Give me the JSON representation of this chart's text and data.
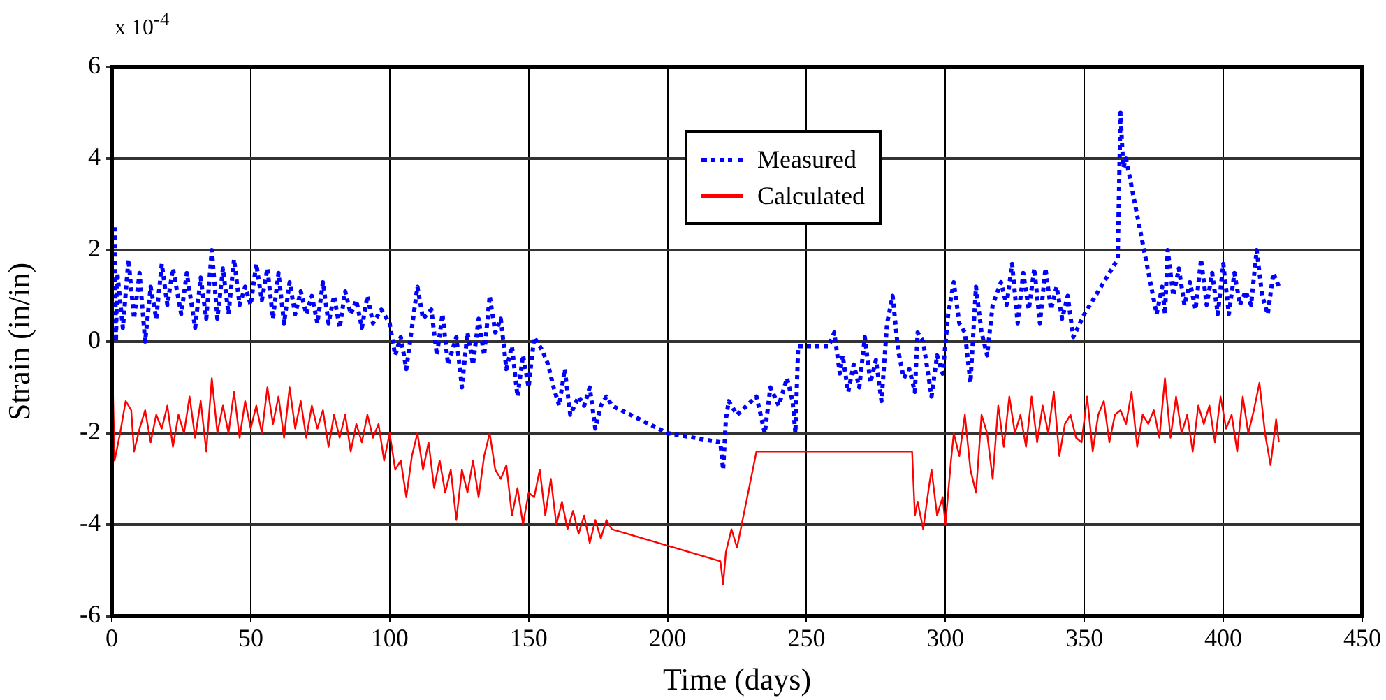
{
  "chart_data": {
    "type": "line",
    "xlabel": "Time (days)",
    "ylabel": "Strain (in/in)",
    "annotations": [
      "x 10$^{-4}$"
    ],
    "xlim": [
      0,
      450
    ],
    "xticks": [
      0,
      50,
      100,
      150,
      200,
      250,
      300,
      350,
      400,
      450
    ],
    "ylim": [
      -6,
      6
    ],
    "yticks": [
      -6,
      -4,
      -2,
      0,
      2,
      4,
      6
    ],
    "grid": true,
    "legend": "top",
    "marker": "none",
    "series": [
      {
        "name": "Measured",
        "color": "#0000ff",
        "line_style": "dotted",
        "x": [
          1,
          1.5,
          2,
          4,
          6,
          8,
          10,
          12,
          14,
          16,
          18,
          20,
          22,
          25,
          27,
          30,
          32,
          34,
          36,
          38,
          40,
          42,
          44,
          46,
          48,
          50,
          52,
          54,
          56,
          58,
          60,
          62,
          64,
          66,
          68,
          70,
          72,
          74,
          76,
          78,
          80,
          82,
          84,
          86,
          88,
          90,
          92,
          94,
          97,
          100,
          102,
          104,
          106,
          108,
          110,
          112,
          115,
          117,
          119,
          121,
          124,
          126,
          128,
          130,
          132,
          134,
          136,
          138,
          140,
          142,
          144,
          146,
          148,
          150,
          152,
          155,
          157,
          159,
          161,
          163,
          165,
          168,
          170,
          172,
          174,
          176,
          178,
          180,
          200,
          219,
          220,
          221,
          222,
          225,
          232,
          235,
          237,
          240,
          243,
          245,
          246,
          247,
          250,
          258,
          260,
          262,
          263,
          265,
          267,
          269,
          271,
          273,
          275,
          277,
          279,
          281,
          283,
          285,
          287,
          289,
          290,
          292,
          295,
          297,
          299,
          301,
          303,
          305,
          307,
          309,
          311,
          313,
          315,
          317,
          320,
          322,
          324,
          326,
          328,
          330,
          332,
          334,
          336,
          338,
          340,
          342,
          344,
          346,
          350,
          362,
          363,
          364,
          365,
          376,
          378,
          379,
          380,
          382,
          384,
          386,
          388,
          390,
          392,
          394,
          396,
          398,
          400,
          402,
          404,
          406,
          408,
          410,
          412,
          414,
          416,
          418,
          420
        ],
        "values": [
          2.5,
          0,
          1.5,
          0.3,
          1.8,
          0.5,
          1.5,
          0,
          1.2,
          0.5,
          1.7,
          0.8,
          1.6,
          0.6,
          1.5,
          0.3,
          1.4,
          0.5,
          2.0,
          0.5,
          1.6,
          0.6,
          1.8,
          0.8,
          1.2,
          0.8,
          1.7,
          0.9,
          1.6,
          0.5,
          1.5,
          0.4,
          1.3,
          0.6,
          1.1,
          0.6,
          1.0,
          0.4,
          1.3,
          0.4,
          1.0,
          0.3,
          1.1,
          0.6,
          0.9,
          0.3,
          1.0,
          0.4,
          0.7,
          0.4,
          -0.3,
          0.1,
          -0.6,
          0.3,
          1.2,
          0.5,
          0.7,
          -0.3,
          0.6,
          -0.5,
          0.1,
          -1.0,
          0.2,
          -0.5,
          0.5,
          -0.3,
          1.0,
          0.2,
          0.5,
          -0.6,
          -0.1,
          -1.2,
          -0.3,
          -1.0,
          0.1,
          -0.2,
          -0.5,
          -1.0,
          -1.4,
          -0.6,
          -1.6,
          -1.2,
          -1.4,
          -1.0,
          -1.9,
          -1.4,
          -1.2,
          -1.4,
          -2.0,
          -2.2,
          -2.8,
          -1.7,
          -1.3,
          -1.6,
          -1.2,
          -2.0,
          -1.0,
          -1.4,
          -0.8,
          -1.3,
          -2.0,
          -0.1,
          -0.1,
          -0.1,
          0.2,
          -0.7,
          -0.3,
          -1.1,
          -0.5,
          -1.0,
          0.1,
          -0.9,
          -0.4,
          -1.3,
          0.4,
          1.0,
          -0.2,
          -0.8,
          -0.6,
          -1.1,
          0.2,
          0.0,
          -1.2,
          -0.3,
          -0.7,
          0.6,
          1.3,
          0.4,
          0.2,
          -0.9,
          1.2,
          0.2,
          -0.3,
          0.8,
          1.3,
          0.8,
          1.7,
          0.4,
          1.5,
          0.7,
          1.6,
          0.4,
          1.6,
          0.7,
          1.2,
          0.5,
          1.0,
          0.1,
          0.6,
          1.8,
          5.0,
          3.8,
          4.0,
          0.6,
          1.2,
          0.6,
          2.0,
          1.0,
          1.6,
          0.8,
          1.3,
          0.7,
          1.8,
          0.8,
          1.5,
          0.6,
          1.7,
          0.6,
          1.5,
          0.8,
          1.1,
          0.8,
          2.0,
          1.0,
          0.6,
          1.5,
          1.2
        ]
      },
      {
        "name": "Calculated",
        "color": "#ff0000",
        "line_style": "solid",
        "x": [
          0,
          1,
          3,
          5,
          7,
          8,
          10,
          12,
          14,
          16,
          18,
          20,
          22,
          24,
          26,
          28,
          30,
          32,
          34,
          36,
          38,
          40,
          42,
          44,
          46,
          48,
          50,
          52,
          54,
          56,
          58,
          60,
          62,
          64,
          66,
          68,
          70,
          72,
          74,
          76,
          78,
          80,
          82,
          84,
          86,
          88,
          90,
          92,
          94,
          96,
          98,
          100,
          102,
          104,
          106,
          108,
          110,
          112,
          114,
          116,
          118,
          120,
          122,
          124,
          126,
          128,
          130,
          132,
          134,
          136,
          138,
          140,
          142,
          144,
          146,
          148,
          150,
          152,
          154,
          156,
          158,
          160,
          162,
          164,
          166,
          168,
          170,
          172,
          174,
          176,
          178,
          180,
          219,
          220,
          221,
          223,
          225,
          232,
          288,
          289,
          290,
          292,
          294,
          295,
          297,
          299,
          300,
          302,
          303,
          305,
          307,
          309,
          311,
          313,
          315,
          317,
          319,
          321,
          323,
          325,
          327,
          329,
          331,
          333,
          335,
          337,
          339,
          341,
          343,
          345,
          347,
          349,
          351,
          353,
          355,
          357,
          359,
          361,
          363,
          365,
          367,
          369,
          371,
          373,
          375,
          377,
          379,
          381,
          383,
          385,
          387,
          389,
          391,
          393,
          395,
          397,
          399,
          401,
          403,
          405,
          407,
          409,
          411,
          413,
          415,
          417,
          419,
          420
        ],
        "values": [
          0,
          -2.6,
          -2.0,
          -1.3,
          -1.5,
          -2.4,
          -1.9,
          -1.5,
          -2.2,
          -1.6,
          -1.9,
          -1.4,
          -2.3,
          -1.6,
          -2.0,
          -1.2,
          -2.1,
          -1.3,
          -2.4,
          -0.8,
          -2.0,
          -1.4,
          -2.0,
          -1.1,
          -2.1,
          -1.3,
          -1.9,
          -1.4,
          -2.0,
          -1.0,
          -1.8,
          -1.2,
          -2.1,
          -1.0,
          -1.9,
          -1.3,
          -2.1,
          -1.4,
          -1.9,
          -1.5,
          -2.3,
          -1.6,
          -2.1,
          -1.6,
          -2.4,
          -1.8,
          -2.2,
          -1.6,
          -2.1,
          -1.8,
          -2.6,
          -2.0,
          -2.8,
          -2.6,
          -3.4,
          -2.5,
          -2.0,
          -2.8,
          -2.2,
          -3.2,
          -2.6,
          -3.3,
          -2.8,
          -3.9,
          -2.8,
          -3.3,
          -2.6,
          -3.4,
          -2.5,
          -2.0,
          -2.8,
          -3.0,
          -2.7,
          -3.8,
          -3.2,
          -4.0,
          -3.3,
          -3.4,
          -2.8,
          -3.8,
          -3.0,
          -4.0,
          -3.5,
          -4.1,
          -3.7,
          -4.2,
          -3.8,
          -4.4,
          -3.9,
          -4.3,
          -3.9,
          -4.1,
          -4.8,
          -5.3,
          -4.6,
          -4.1,
          -4.5,
          -2.4,
          -2.4,
          -3.8,
          -3.5,
          -4.1,
          -3.2,
          -2.8,
          -3.8,
          -3.4,
          -4.0,
          -2.6,
          -2.0,
          -2.5,
          -1.6,
          -2.8,
          -3.3,
          -1.6,
          -2.0,
          -3.0,
          -1.4,
          -2.3,
          -1.2,
          -2.0,
          -1.6,
          -2.3,
          -1.2,
          -2.2,
          -1.4,
          -2.0,
          -1.1,
          -2.5,
          -1.8,
          -1.6,
          -2.1,
          -2.2,
          -1.2,
          -2.4,
          -1.6,
          -1.3,
          -2.2,
          -1.6,
          -1.5,
          -1.8,
          -1.1,
          -2.3,
          -1.6,
          -1.8,
          -1.5,
          -2.1,
          -0.8,
          -2.1,
          -1.2,
          -2.0,
          -1.6,
          -2.4,
          -1.4,
          -1.8,
          -1.4,
          -2.2,
          -1.2,
          -1.9,
          -1.6,
          -2.4,
          -1.2,
          -2.0,
          -1.5,
          -0.9,
          -2.0,
          -2.7,
          -1.7,
          -2.2
        ]
      }
    ]
  }
}
